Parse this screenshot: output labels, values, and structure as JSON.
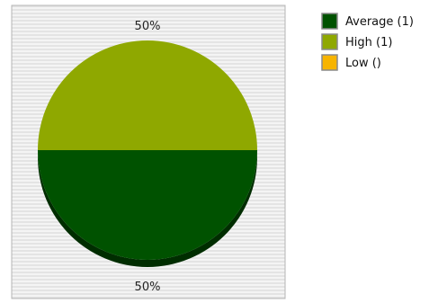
{
  "chart_data": {
    "type": "pie",
    "slices": [
      {
        "name": "Average",
        "legend_label": "Average (1)",
        "value": 1,
        "percent_label": "50%",
        "color": "#005200"
      },
      {
        "name": "High",
        "legend_label": "High (1)",
        "value": 1,
        "percent_label": "50%",
        "color": "#8fa800"
      },
      {
        "name": "Low",
        "legend_label": "Low ()",
        "value": 0,
        "percent_label": "",
        "color": "#f7b400"
      }
    ],
    "legend_placement": "right",
    "background": "striped-grey"
  }
}
